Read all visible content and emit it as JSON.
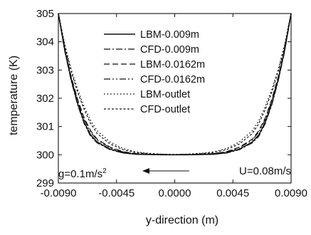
{
  "chart_data": {
    "type": "line",
    "title": "",
    "xlabel": "y-direction (m)",
    "ylabel": "temperature (K)",
    "xlim": [
      -0.009,
      0.009
    ],
    "ylim": [
      299,
      305
    ],
    "x_ticks": [
      -0.009,
      -0.0045,
      0.0,
      0.0045,
      0.009
    ],
    "x_tick_labels": [
      "-0.0090",
      "-0.0045",
      "0.0000",
      "0.0045",
      "0.0090"
    ],
    "y_ticks": [
      299,
      300,
      301,
      302,
      303,
      304,
      305
    ],
    "y_tick_labels": [
      "299",
      "300",
      "301",
      "302",
      "303",
      "304",
      "305"
    ],
    "grid": false,
    "legend_position": "center-top",
    "series": [
      {
        "name": "LBM-0.009m",
        "dash": "solid",
        "x": [
          -0.009,
          -0.0085,
          -0.008,
          -0.0075,
          -0.007,
          -0.0065,
          -0.006,
          -0.005,
          -0.004,
          -0.003,
          -0.002,
          -0.001,
          0.0,
          0.001,
          0.002,
          0.003,
          0.004,
          0.005,
          0.006,
          0.0065,
          0.007,
          0.0075,
          0.008,
          0.0085,
          0.009
        ],
        "y": [
          305.0,
          303.7,
          302.65,
          301.8,
          301.15,
          300.7,
          300.45,
          300.2,
          300.07,
          300.02,
          300.01,
          300.0,
          300.0,
          300.0,
          300.01,
          300.02,
          300.07,
          300.2,
          300.45,
          300.7,
          301.15,
          301.8,
          302.65,
          303.7,
          305.0
        ]
      },
      {
        "name": "CFD-0.009m",
        "dash": "dash-dot",
        "x": [
          -0.009,
          -0.0085,
          -0.008,
          -0.0075,
          -0.007,
          -0.0065,
          -0.006,
          -0.005,
          -0.004,
          -0.003,
          -0.002,
          -0.001,
          0.0,
          0.001,
          0.002,
          0.003,
          0.004,
          0.005,
          0.006,
          0.0065,
          0.007,
          0.0075,
          0.008,
          0.0085,
          0.009
        ],
        "y": [
          305.0,
          303.65,
          302.6,
          301.75,
          301.1,
          300.65,
          300.42,
          300.18,
          300.06,
          300.02,
          300.01,
          300.0,
          300.0,
          300.0,
          300.01,
          300.02,
          300.06,
          300.18,
          300.42,
          300.65,
          301.1,
          301.75,
          302.6,
          303.65,
          305.0
        ]
      },
      {
        "name": "LBM-0.0162m",
        "dash": "dashed",
        "x": [
          -0.009,
          -0.0085,
          -0.008,
          -0.0075,
          -0.007,
          -0.0065,
          -0.006,
          -0.005,
          -0.004,
          -0.003,
          -0.002,
          -0.001,
          0.0,
          0.001,
          0.002,
          0.003,
          0.004,
          0.005,
          0.006,
          0.0065,
          0.007,
          0.0075,
          0.008,
          0.0085,
          0.009
        ],
        "y": [
          305.0,
          303.75,
          302.75,
          301.95,
          301.3,
          300.85,
          300.55,
          300.27,
          300.11,
          300.04,
          300.02,
          300.01,
          300.0,
          300.01,
          300.02,
          300.04,
          300.11,
          300.27,
          300.55,
          300.85,
          301.3,
          301.95,
          302.75,
          303.75,
          305.0
        ]
      },
      {
        "name": "CFD-0.0162m",
        "dash": "dash-dot-dot",
        "x": [
          -0.009,
          -0.0085,
          -0.008,
          -0.0075,
          -0.007,
          -0.0065,
          -0.006,
          -0.005,
          -0.004,
          -0.003,
          -0.002,
          -0.001,
          0.0,
          0.001,
          0.002,
          0.003,
          0.004,
          0.005,
          0.006,
          0.0065,
          0.007,
          0.0075,
          0.008,
          0.0085,
          0.009
        ],
        "y": [
          305.0,
          303.7,
          302.7,
          301.9,
          301.25,
          300.8,
          300.52,
          300.25,
          300.1,
          300.04,
          300.02,
          300.01,
          300.0,
          300.01,
          300.02,
          300.04,
          300.1,
          300.25,
          300.52,
          300.8,
          301.25,
          301.9,
          302.7,
          303.7,
          305.0
        ]
      },
      {
        "name": "LBM-outlet",
        "dash": "dotted",
        "x": [
          -0.009,
          -0.0085,
          -0.008,
          -0.0075,
          -0.007,
          -0.0065,
          -0.006,
          -0.005,
          -0.004,
          -0.003,
          -0.002,
          -0.001,
          0.0,
          0.001,
          0.002,
          0.003,
          0.004,
          0.005,
          0.006,
          0.0065,
          0.007,
          0.0075,
          0.008,
          0.0085,
          0.009
        ],
        "y": [
          305.0,
          303.9,
          303.0,
          302.3,
          301.7,
          301.2,
          300.85,
          300.45,
          300.22,
          300.1,
          300.05,
          300.02,
          300.01,
          300.02,
          300.05,
          300.1,
          300.22,
          300.45,
          300.85,
          301.2,
          301.7,
          302.3,
          303.0,
          303.9,
          305.0
        ]
      },
      {
        "name": "CFD-outlet",
        "dash": "fine-dash",
        "x": [
          -0.009,
          -0.0085,
          -0.008,
          -0.0075,
          -0.007,
          -0.0065,
          -0.006,
          -0.005,
          -0.004,
          -0.003,
          -0.002,
          -0.001,
          0.0,
          0.001,
          0.002,
          0.003,
          0.004,
          0.005,
          0.006,
          0.0065,
          0.007,
          0.0075,
          0.008,
          0.0085,
          0.009
        ],
        "y": [
          305.0,
          303.85,
          302.95,
          302.2,
          301.6,
          301.1,
          300.75,
          300.38,
          300.18,
          300.08,
          300.04,
          300.02,
          300.01,
          300.02,
          300.04,
          300.08,
          300.18,
          300.38,
          300.75,
          301.1,
          301.6,
          302.2,
          302.95,
          303.85,
          305.0
        ]
      }
    ],
    "annotations": {
      "gravity_prefix": "g=0.1m/s",
      "gravity_exponent": "2",
      "velocity": "U=0.08m/s"
    }
  }
}
